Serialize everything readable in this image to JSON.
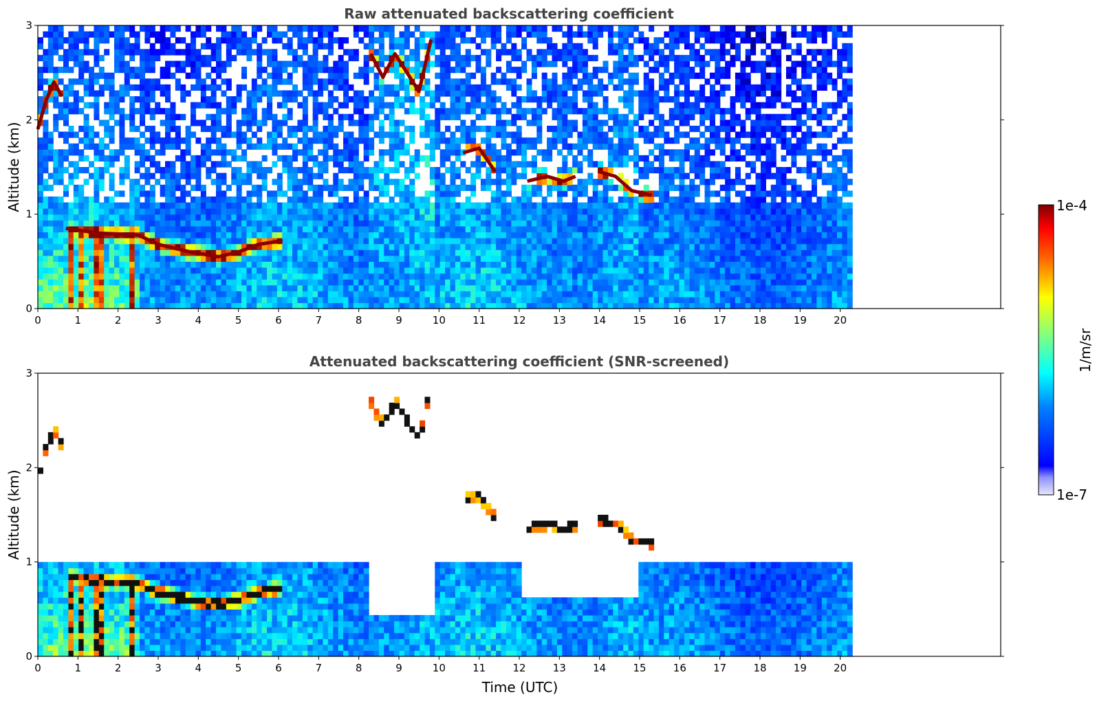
{
  "chart_data": [
    {
      "type": "heatmap",
      "title": "Raw attenuated backscattering coefficient",
      "xlabel": "",
      "ylabel": "Altitude (km)",
      "xlim": [
        0,
        24
      ],
      "ylim": [
        0,
        3
      ],
      "x_ticks": [
        0,
        1,
        2,
        3,
        4,
        5,
        6,
        7,
        8,
        9,
        10,
        11,
        12,
        13,
        14,
        15,
        16,
        17,
        18,
        19,
        20
      ],
      "y_ticks": [
        0,
        1,
        2,
        3
      ],
      "data_extent_x": [
        0,
        20.3
      ],
      "features": [
        {
          "label": "boundary layer top",
          "x": [
            0.7,
            1.5,
            2.5,
            3.0,
            3.8,
            4.5,
            5.0,
            5.5,
            6.1
          ],
          "y": [
            0.85,
            0.8,
            0.78,
            0.68,
            0.6,
            0.55,
            0.6,
            0.68,
            0.72
          ]
        },
        {
          "label": "early cloud",
          "x": [
            0.0,
            0.2,
            0.4,
            0.6
          ],
          "y": [
            1.9,
            2.2,
            2.4,
            2.25
          ]
        },
        {
          "label": "high cloud",
          "x": [
            8.3,
            8.6,
            8.9,
            9.2,
            9.5,
            9.8
          ],
          "y": [
            2.7,
            2.45,
            2.7,
            2.5,
            2.3,
            2.85
          ]
        },
        {
          "label": "midlevel cloud",
          "x": [
            10.6,
            11.0,
            11.4
          ],
          "y": [
            1.65,
            1.7,
            1.45
          ]
        },
        {
          "label": "midlevel cloud",
          "x": [
            12.2,
            12.7,
            13.1,
            13.4
          ],
          "y": [
            1.35,
            1.4,
            1.35,
            1.4
          ]
        },
        {
          "label": "midlevel cloud",
          "x": [
            14.0,
            14.4,
            14.8,
            15.3
          ],
          "y": [
            1.45,
            1.4,
            1.25,
            1.2
          ]
        }
      ]
    },
    {
      "type": "heatmap",
      "title": "Attenuated backscattering coefficient (SNR-screened)",
      "xlabel": "Time (UTC)",
      "ylabel": "Altitude (km)",
      "xlim": [
        0,
        24
      ],
      "ylim": [
        0,
        3
      ],
      "x_ticks": [
        0,
        1,
        2,
        3,
        4,
        5,
        6,
        7,
        8,
        9,
        10,
        11,
        12,
        13,
        14,
        15,
        16,
        17,
        18,
        19,
        20
      ],
      "y_ticks": [
        0,
        1,
        2,
        3
      ],
      "data_extent_x": [
        0,
        20.3
      ]
    }
  ],
  "colorbar": {
    "max_label": "1e-4",
    "min_label": "1e-7",
    "label": "1/m/sr",
    "scale": "log",
    "range": [
      1e-07,
      0.0001
    ],
    "colormap": "jet"
  }
}
